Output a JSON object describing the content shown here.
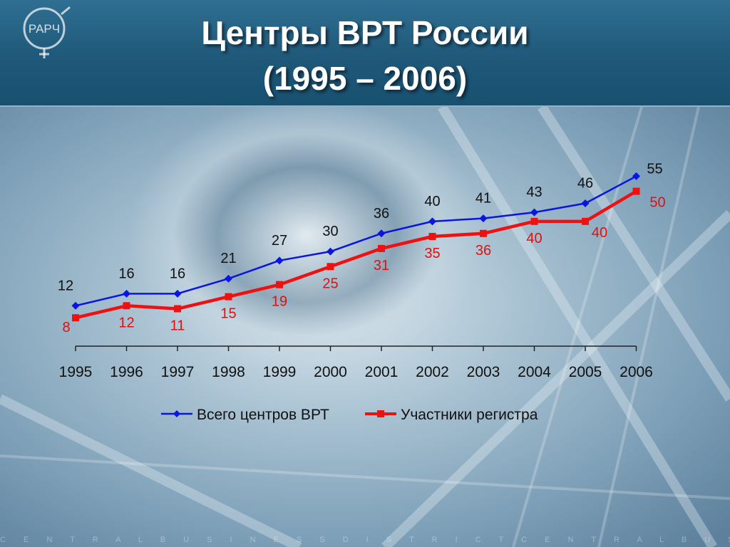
{
  "slide": {
    "title_line1": "Центры ВРТ России",
    "title_line2": "(1995 – 2006)",
    "logo_text": "РАРЧ",
    "footer_text": "C E N T R A L B U S I N E S S D I S T R I C T C E N T R A L B U S I N E S S D I S T R I C T C E N T R A"
  },
  "chart_data": {
    "type": "line",
    "title": "Центры ВРТ России (1995 – 2006)",
    "categories": [
      "1995",
      "1996",
      "1997",
      "1998",
      "1999",
      "2000",
      "2001",
      "2002",
      "2003",
      "2004",
      "2005",
      "2006"
    ],
    "series": [
      {
        "name": "Всего центров ВРТ",
        "color": "#0a16e0",
        "marker": "diamond",
        "values": [
          12,
          16,
          16,
          21,
          27,
          30,
          36,
          40,
          41,
          43,
          46,
          55
        ]
      },
      {
        "name": "Участники регистра",
        "color": "#ee1111",
        "marker": "square",
        "values": [
          8,
          12,
          11,
          15,
          19,
          25,
          31,
          35,
          36,
          40,
          40,
          50
        ]
      }
    ],
    "ylim": [
      0,
      55
    ],
    "grid": false,
    "legend_position": "bottom",
    "data_labels": true
  }
}
